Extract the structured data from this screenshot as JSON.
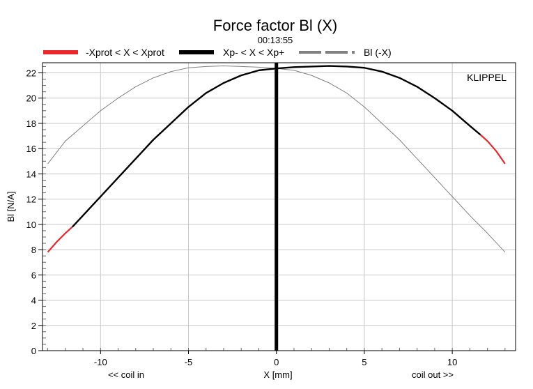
{
  "chart_data": {
    "type": "line",
    "title": "Force factor Bl (X)",
    "subtitle": "00:13:55",
    "xlabel": "X [mm]",
    "ylabel": "Bl [N/A]",
    "x_annotations": {
      "left": "<< coil in",
      "right": "coil out >>"
    },
    "watermark": "KLIPPEL",
    "xlim": [
      -13,
      13.6
    ],
    "ylim": [
      0,
      22.8
    ],
    "x_ticks": [
      -10,
      -5,
      0,
      5,
      10
    ],
    "x_tick_labels": [
      "-10",
      "-5",
      "0",
      "5",
      "10"
    ],
    "y_ticks": [
      0,
      2,
      4,
      6,
      8,
      10,
      12,
      14,
      16,
      18,
      20,
      22
    ],
    "y_tick_labels": [
      "0",
      "2",
      "4",
      "6",
      "8",
      "10",
      "12",
      "14",
      "16",
      "18",
      "20",
      "22"
    ],
    "grid": true,
    "legend_position": "top",
    "series": [
      {
        "name": "-Xprot < X < Xprot",
        "color": "#e8262b",
        "style": "solid",
        "x": [
          -13,
          -12.5,
          -12,
          -11.6,
          11.6,
          12,
          12.5,
          13
        ],
        "y": [
          7.8,
          8.6,
          9.3,
          9.8,
          17.1,
          16.6,
          15.8,
          14.8
        ]
      },
      {
        "name": "Xp- < X < Xp+",
        "color": "#000000",
        "style": "solid",
        "x": [
          -11.6,
          -11,
          -10,
          -9,
          -8,
          -7,
          -6,
          -5,
          -4,
          -3,
          -2,
          -1,
          0,
          1,
          2,
          3,
          4,
          5,
          6,
          7,
          8,
          9,
          10,
          11,
          11.6
        ],
        "y": [
          9.8,
          10.7,
          12.2,
          13.7,
          15.2,
          16.7,
          18.0,
          19.3,
          20.4,
          21.2,
          21.8,
          22.2,
          22.35,
          22.45,
          22.5,
          22.55,
          22.5,
          22.4,
          22.1,
          21.6,
          20.9,
          20.0,
          19.0,
          17.8,
          17.1
        ]
      },
      {
        "name": "Bl (-X)",
        "color": "#808080",
        "style": "dashed",
        "x": [
          -13,
          -12,
          -11,
          -10,
          -9,
          -8,
          -7,
          -6,
          -5,
          -4,
          -3,
          -2,
          -1,
          0,
          1,
          2,
          3,
          4,
          5,
          6,
          7,
          8,
          9,
          10,
          11,
          12,
          13
        ],
        "y": [
          14.8,
          16.6,
          17.8,
          19.0,
          20.0,
          20.9,
          21.6,
          22.1,
          22.4,
          22.5,
          22.55,
          22.5,
          22.45,
          22.35,
          22.2,
          21.8,
          21.2,
          20.4,
          19.3,
          18.0,
          16.7,
          15.2,
          13.7,
          12.2,
          10.7,
          9.3,
          7.8
        ]
      }
    ],
    "vertical_marker": {
      "x": 0,
      "color": "#000000"
    }
  }
}
